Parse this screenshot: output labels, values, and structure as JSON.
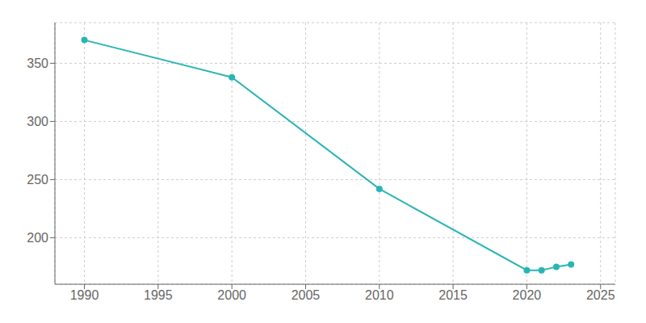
{
  "chart_data": {
    "type": "line",
    "x": [
      1990,
      2000,
      2010,
      2020,
      2021,
      2022,
      2023
    ],
    "values": [
      370,
      338,
      242,
      172,
      172,
      175,
      177
    ],
    "color": "#2ab5b5",
    "marker": "circle",
    "xlim": [
      1988,
      2026
    ],
    "ylim": [
      160,
      385
    ],
    "xticks": [
      1990,
      1995,
      2000,
      2005,
      2010,
      2015,
      2020,
      2025
    ],
    "yticks": [
      200,
      250,
      300,
      350
    ],
    "grid": true
  }
}
